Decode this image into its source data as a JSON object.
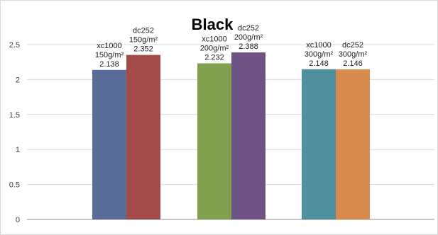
{
  "chart_data": {
    "type": "bar",
    "title": "Black",
    "xlabel": "",
    "ylabel": "",
    "ylim": [
      0,
      2.5
    ],
    "yticks": [
      "0",
      "0.5",
      "1",
      "1.5",
      "2",
      "2.5"
    ],
    "grid": true,
    "legend": "none",
    "groups": [
      {
        "bars": [
          {
            "lines": [
              "xc1000",
              "150g/m²",
              "2.138"
            ],
            "value": 2.138,
            "color": "#5a6c9a"
          },
          {
            "lines": [
              "dc252",
              "150g/m²",
              "2.352"
            ],
            "value": 2.352,
            "color": "#a24b48"
          }
        ]
      },
      {
        "bars": [
          {
            "lines": [
              "xc1000",
              "200g/m²",
              "2.232"
            ],
            "value": 2.232,
            "color": "#82a050"
          },
          {
            "lines": [
              "dc252",
              "200g/m²",
              "2.388"
            ],
            "value": 2.388,
            "color": "#6d5484"
          }
        ]
      },
      {
        "bars": [
          {
            "lines": [
              "xc1000",
              "300g/m²",
              "2.148"
            ],
            "value": 2.148,
            "color": "#4f8f9e"
          },
          {
            "lines": [
              "dc252",
              "300g/m²",
              "2.146"
            ],
            "value": 2.146,
            "color": "#d88a4f"
          }
        ]
      }
    ]
  }
}
